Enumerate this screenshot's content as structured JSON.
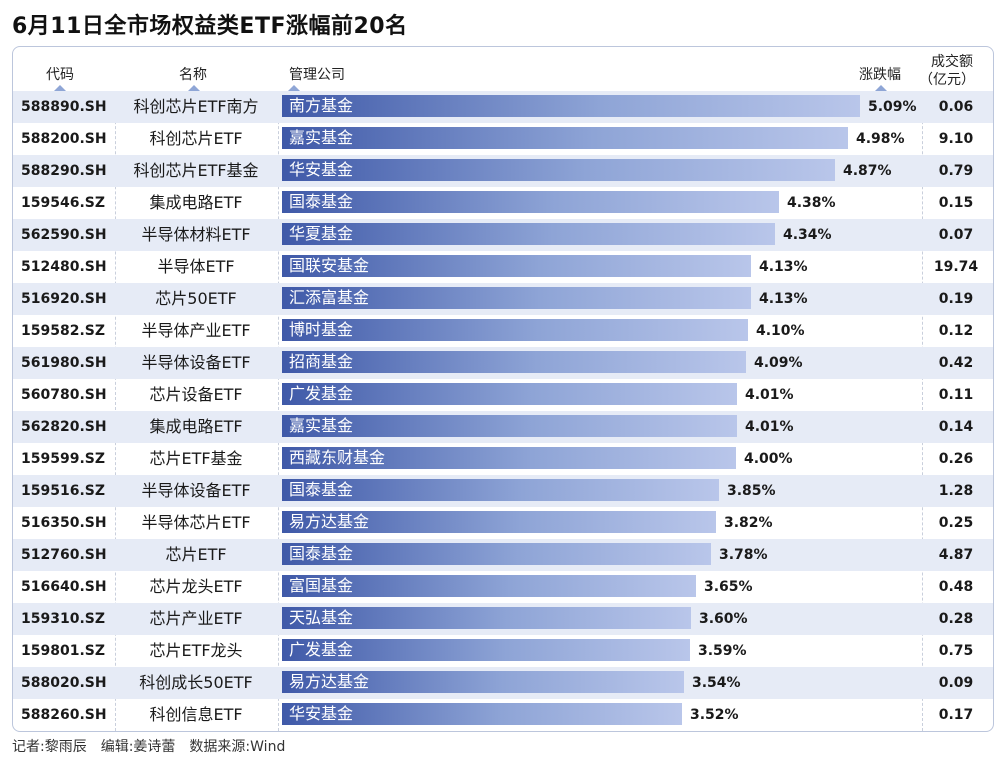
{
  "title": "6月11日全市场权益类ETF涨幅前20名",
  "headers": {
    "code": "代码",
    "name": "名称",
    "company": "管理公司",
    "change": "涨跌幅",
    "volume_line1": "成交额",
    "volume_line2": "（亿元）"
  },
  "footer": "记者:黎雨辰　编辑:姜诗蕾　数据来源:Wind",
  "colors": {
    "bar_dark": "#3f59a8",
    "bar_light": "#b9c6ea",
    "row_alt": "#e6ebf6"
  },
  "chart_data": {
    "type": "bar",
    "rows": [
      {
        "code": "588890.SH",
        "name": "科创芯片ETF南方",
        "company": "南方基金",
        "change": 5.09,
        "change_label": "5.09%",
        "volume": "0.06"
      },
      {
        "code": "588200.SH",
        "name": "科创芯片ETF",
        "company": "嘉实基金",
        "change": 4.98,
        "change_label": "4.98%",
        "volume": "9.10"
      },
      {
        "code": "588290.SH",
        "name": "科创芯片ETF基金",
        "company": "华安基金",
        "change": 4.87,
        "change_label": "4.87%",
        "volume": "0.79"
      },
      {
        "code": "159546.SZ",
        "name": "集成电路ETF",
        "company": "国泰基金",
        "change": 4.38,
        "change_label": "4.38%",
        "volume": "0.15"
      },
      {
        "code": "562590.SH",
        "name": "半导体材料ETF",
        "company": "华夏基金",
        "change": 4.34,
        "change_label": "4.34%",
        "volume": "0.07"
      },
      {
        "code": "512480.SH",
        "name": "半导体ETF",
        "company": "国联安基金",
        "change": 4.13,
        "change_label": "4.13%",
        "volume": "19.74"
      },
      {
        "code": "516920.SH",
        "name": "芯片50ETF",
        "company": "汇添富基金",
        "change": 4.13,
        "change_label": "4.13%",
        "volume": "0.19"
      },
      {
        "code": "159582.SZ",
        "name": "半导体产业ETF",
        "company": "博时基金",
        "change": 4.1,
        "change_label": "4.10%",
        "volume": "0.12"
      },
      {
        "code": "561980.SH",
        "name": "半导体设备ETF",
        "company": "招商基金",
        "change": 4.09,
        "change_label": "4.09%",
        "volume": "0.42"
      },
      {
        "code": "560780.SH",
        "name": "芯片设备ETF",
        "company": "广发基金",
        "change": 4.01,
        "change_label": "4.01%",
        "volume": "0.11"
      },
      {
        "code": "562820.SH",
        "name": "集成电路ETF",
        "company": "嘉实基金",
        "change": 4.01,
        "change_label": "4.01%",
        "volume": "0.14"
      },
      {
        "code": "159599.SZ",
        "name": "芯片ETF基金",
        "company": "西藏东财基金",
        "change": 4.0,
        "change_label": "4.00%",
        "volume": "0.26"
      },
      {
        "code": "159516.SZ",
        "name": "半导体设备ETF",
        "company": "国泰基金",
        "change": 3.85,
        "change_label": "3.85%",
        "volume": "1.28"
      },
      {
        "code": "516350.SH",
        "name": "半导体芯片ETF",
        "company": "易方达基金",
        "change": 3.82,
        "change_label": "3.82%",
        "volume": "0.25"
      },
      {
        "code": "512760.SH",
        "name": "芯片ETF",
        "company": "国泰基金",
        "change": 3.78,
        "change_label": "3.78%",
        "volume": "4.87"
      },
      {
        "code": "516640.SH",
        "name": "芯片龙头ETF",
        "company": "富国基金",
        "change": 3.65,
        "change_label": "3.65%",
        "volume": "0.48"
      },
      {
        "code": "159310.SZ",
        "name": "芯片产业ETF",
        "company": "天弘基金",
        "change": 3.6,
        "change_label": "3.60%",
        "volume": "0.28"
      },
      {
        "code": "159801.SZ",
        "name": "芯片ETF龙头",
        "company": "广发基金",
        "change": 3.59,
        "change_label": "3.59%",
        "volume": "0.75"
      },
      {
        "code": "588020.SH",
        "name": "科创成长50ETF",
        "company": "易方达基金",
        "change": 3.54,
        "change_label": "3.54%",
        "volume": "0.09"
      },
      {
        "code": "588260.SH",
        "name": "科创信息ETF",
        "company": "华安基金",
        "change": 3.52,
        "change_label": "3.52%",
        "volume": "0.17"
      }
    ]
  }
}
